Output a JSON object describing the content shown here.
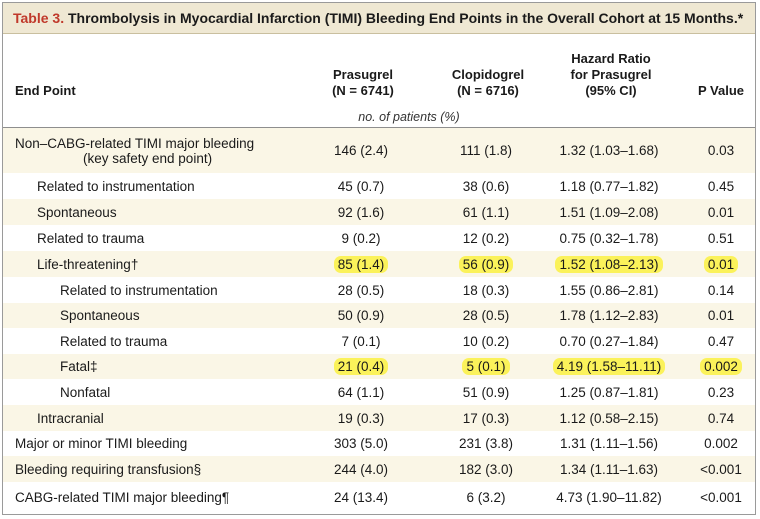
{
  "title": {
    "number": "Table 3.",
    "text": "Thrombolysis in Myocardial Infarction (TIMI) Bleeding End Points in the Overall Cohort at 15 Months.*"
  },
  "headers": {
    "end_point": "End Point",
    "prasugrel_1": "Prasugrel",
    "prasugrel_2": "(N = 6741)",
    "clopidogrel_1": "Clopidogrel",
    "clopidogrel_2": "(N = 6716)",
    "hr_1": "Hazard Ratio",
    "hr_2": "for Prasugrel",
    "hr_3": "(95% CI)",
    "p_value": "P Value",
    "units": "no. of patients (%)"
  },
  "rows": [
    {
      "label": "Non–CABG-related TIMI major bleeding",
      "label2": "(key safety end point)",
      "indent": 0,
      "prasugrel": "146 (2.4)",
      "clopidogrel": "111 (1.8)",
      "hr": "1.32 (1.03–1.68)",
      "p": "0.03",
      "highlight": false
    },
    {
      "label": "Related to instrumentation",
      "indent": 1,
      "prasugrel": "45 (0.7)",
      "clopidogrel": "38 (0.6)",
      "hr": "1.18 (0.77–1.82)",
      "p": "0.45",
      "highlight": false
    },
    {
      "label": "Spontaneous",
      "indent": 1,
      "prasugrel": "92 (1.6)",
      "clopidogrel": "61 (1.1)",
      "hr": "1.51 (1.09–2.08)",
      "p": "0.01",
      "highlight": false
    },
    {
      "label": "Related to trauma",
      "indent": 1,
      "prasugrel": "9 (0.2)",
      "clopidogrel": "12 (0.2)",
      "hr": "0.75 (0.32–1.78)",
      "p": "0.51",
      "highlight": false
    },
    {
      "label": "Life-threatening†",
      "indent": 1,
      "prasugrel": "85 (1.4)",
      "clopidogrel": "56 (0.9)",
      "hr": "1.52 (1.08–2.13)",
      "p": "0.01",
      "highlight": true
    },
    {
      "label": "Related to instrumentation",
      "indent": 2,
      "prasugrel": "28 (0.5)",
      "clopidogrel": "18 (0.3)",
      "hr": "1.55 (0.86–2.81)",
      "p": "0.14",
      "highlight": false
    },
    {
      "label": "Spontaneous",
      "indent": 2,
      "prasugrel": "50 (0.9)",
      "clopidogrel": "28 (0.5)",
      "hr": "1.78 (1.12–2.83)",
      "p": "0.01",
      "highlight": false
    },
    {
      "label": "Related to trauma",
      "indent": 2,
      "prasugrel": "7 (0.1)",
      "clopidogrel": "10 (0.2)",
      "hr": "0.70 (0.27–1.84)",
      "p": "0.47",
      "highlight": false
    },
    {
      "label": "Fatal‡",
      "indent": 2,
      "prasugrel": "21 (0.4)",
      "clopidogrel": "5 (0.1)",
      "hr": "4.19 (1.58–11.11)",
      "p": "0.002",
      "highlight": true
    },
    {
      "label": "Nonfatal",
      "indent": 2,
      "prasugrel": "64 (1.1)",
      "clopidogrel": "51 (0.9)",
      "hr": "1.25 (0.87–1.81)",
      "p": "0.23",
      "highlight": false
    },
    {
      "label": "Intracranial",
      "indent": 1,
      "prasugrel": "19 (0.3)",
      "clopidogrel": "17 (0.3)",
      "hr": "1.12 (0.58–2.15)",
      "p": "0.74",
      "highlight": false
    },
    {
      "label": "Major or minor TIMI bleeding",
      "indent": 0,
      "prasugrel": "303 (5.0)",
      "clopidogrel": "231 (3.8)",
      "hr": "1.31 (1.11–1.56)",
      "p": "0.002",
      "highlight": false
    },
    {
      "label": "Bleeding requiring transfusion§",
      "indent": 0,
      "prasugrel": "244 (4.0)",
      "clopidogrel": "182 (3.0)",
      "hr": "1.34 (1.11–1.63)",
      "p": "<0.001",
      "highlight": false
    },
    {
      "label": "CABG-related TIMI major bleeding¶",
      "indent": 0,
      "prasugrel": "24 (13.4)",
      "clopidogrel": "6 (3.2)",
      "hr": "4.73 (1.90–11.82)",
      "p": "<0.001",
      "highlight": false
    }
  ]
}
